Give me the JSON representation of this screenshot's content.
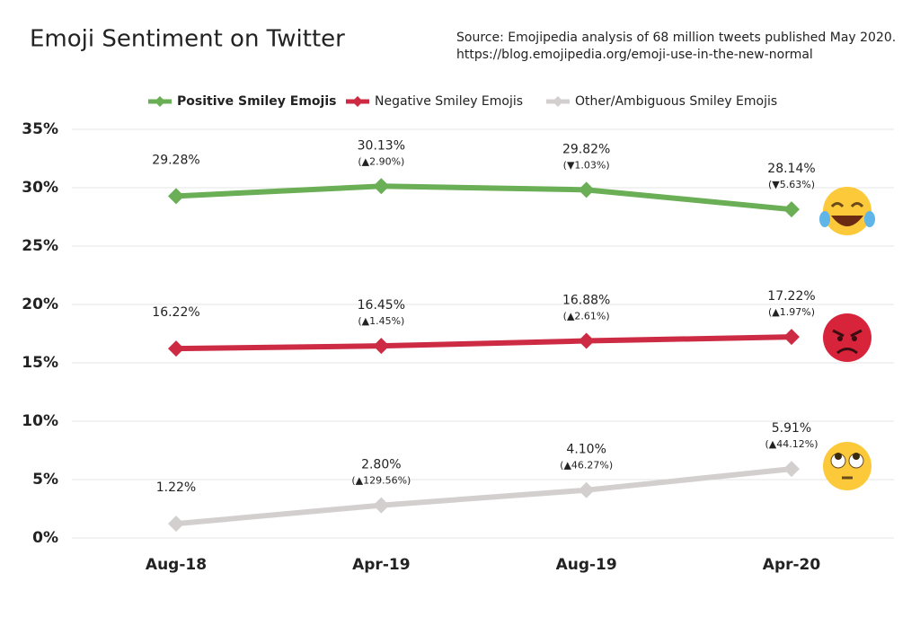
{
  "chart_data": {
    "type": "line",
    "title": "Emoji Sentiment on Twitter",
    "subtitle": [
      "Source: Emojipedia analysis of 68 million tweets published May 2020.",
      "https://blog.emojipedia.org/emoji-use-in-the-new-normal"
    ],
    "categories": [
      "Aug-18",
      "Apr-19",
      "Aug-19",
      "Apr-20"
    ],
    "series": [
      {
        "name": "Positive Smiley Emojis",
        "color": "#6aae55",
        "values": [
          29.28,
          30.13,
          29.82,
          28.14
        ],
        "value_labels": [
          "29.28%",
          "30.13%",
          "29.82%",
          "28.14%"
        ],
        "change_labels": [
          null,
          "(▲2.90%)",
          "(▼1.03%)",
          "(▼5.63%)"
        ]
      },
      {
        "name": "Negative Smiley Emojis",
        "color": "#cd2b44",
        "values": [
          16.22,
          16.45,
          16.88,
          17.22
        ],
        "value_labels": [
          "16.22%",
          "16.45%",
          "16.88%",
          "17.22%"
        ],
        "change_labels": [
          null,
          "(▲1.45%)",
          "(▲2.61%)",
          "(▲1.97%)"
        ]
      },
      {
        "name": "Other/Ambiguous Smiley Emojis",
        "color": "#d3cfcf",
        "values": [
          1.22,
          2.8,
          4.1,
          5.91
        ],
        "value_labels": [
          "1.22%",
          "2.80%",
          "4.10%",
          "5.91%"
        ],
        "change_labels": [
          null,
          "(▲129.56%)",
          "(▲46.27%)",
          "(▲44.12%)"
        ]
      }
    ],
    "ylim": [
      0,
      35
    ],
    "yticks": [
      {
        "value": 0,
        "label": "0%"
      },
      {
        "value": 5,
        "label": "5%"
      },
      {
        "value": 10,
        "label": "10%"
      },
      {
        "value": 15,
        "label": "15%"
      },
      {
        "value": 20,
        "label": "20%"
      },
      {
        "value": 25,
        "label": "25%"
      },
      {
        "value": 30,
        "label": "30%"
      },
      {
        "value": 35,
        "label": "35%"
      }
    ],
    "grid": true
  }
}
